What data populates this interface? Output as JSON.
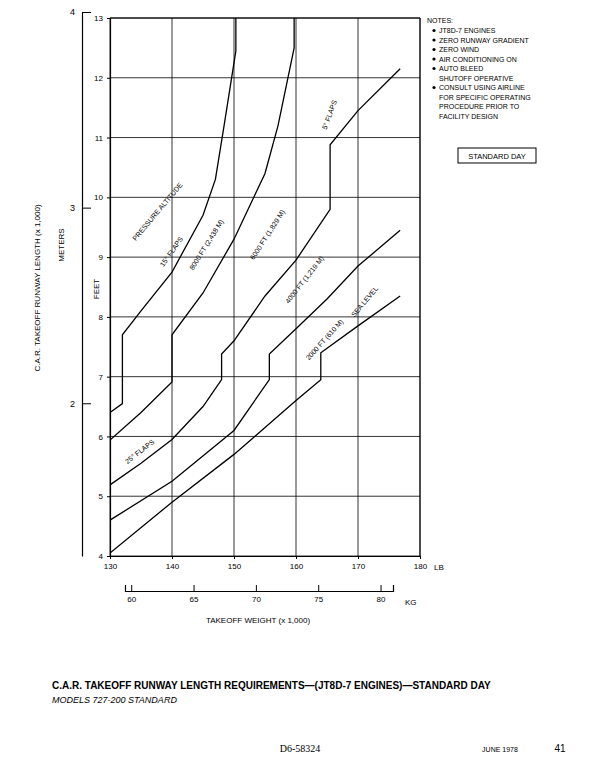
{
  "chart_data": {
    "type": "line",
    "title": "C.A.R. TAKEOFF RUNWAY LENGTH REQUIREMENTS—(JT8D-7 ENGINES)—STANDARD DAY",
    "subtitle": "MODELS 727-200 STANDARD",
    "x_label": "TAKEOFF WEIGHT (x 1,000)",
    "x_unit": "LB",
    "x2_unit": "KG",
    "y_label": "C.A.R. TAKEOFF RUNWAY LENGTH (x 1,000)",
    "y_unit": "FEET",
    "y2_unit": "METERS",
    "xlim": [
      130,
      180
    ],
    "xticks": [
      130,
      140,
      150,
      160,
      170,
      180
    ],
    "x2lim": [
      59.5,
      81
    ],
    "x2ticks": [
      60,
      65,
      70,
      75,
      80
    ],
    "ylim": [
      4,
      13
    ],
    "yticks": [
      4,
      5,
      6,
      7,
      8,
      9,
      10,
      11,
      12,
      13
    ],
    "y2lim": [
      1.2192,
      4.0
    ],
    "y2ticks": [
      2,
      3,
      4
    ],
    "grid": true,
    "series": [
      {
        "name": "8000 FT (2,438 M)",
        "color": "#000000",
        "x": [
          130,
          132,
          132,
          135,
          140,
          145,
          147,
          148.4,
          150.3,
          150.3
        ],
        "values": [
          6.4,
          6.55,
          7.7,
          8.1,
          8.75,
          9.7,
          10.3,
          11.2,
          12.45,
          13
        ]
      },
      {
        "name": "6000 FT (1,829 M)",
        "color": "#000000",
        "x": [
          130,
          135,
          140,
          140,
          145,
          150,
          155,
          157.1,
          159.7,
          159.7
        ],
        "values": [
          5.94,
          6.4,
          6.91,
          7.7,
          8.4,
          9.3,
          10.4,
          11.2,
          12.5,
          13
        ]
      },
      {
        "name": "4000 FT (1,219 M)",
        "color": "#000000",
        "x": [
          130,
          135,
          140,
          145,
          148,
          148,
          150,
          155,
          160,
          165.5,
          165.5,
          170,
          176.8
        ],
        "values": [
          5.19,
          5.55,
          5.95,
          6.5,
          6.95,
          7.38,
          7.6,
          8.35,
          8.95,
          9.8,
          10.88,
          11.45,
          12.15
        ]
      },
      {
        "name": "2000 FT (610 M)",
        "color": "#000000",
        "x": [
          130,
          140,
          150,
          155.7,
          155.7,
          160,
          165,
          170,
          176.8
        ],
        "values": [
          4.6,
          5.25,
          6.1,
          6.95,
          7.38,
          7.8,
          8.3,
          8.85,
          9.45
        ]
      },
      {
        "name": "SEA LEVEL",
        "color": "#000000",
        "x": [
          130,
          140,
          150,
          160,
          164,
          164,
          170,
          176.8
        ],
        "values": [
          4.05,
          4.9,
          5.7,
          6.6,
          6.95,
          7.4,
          7.85,
          8.35
        ]
      }
    ],
    "annotations": [
      "PRESSURE ALTITUDE",
      "15° FLAPS",
      "25° FLAPS",
      "5° FLAPS"
    ],
    "notes_title": "NOTES:",
    "notes": [
      [
        "JT8D-7 ENGINES"
      ],
      [
        "ZERO RUNWAY GRADIENT"
      ],
      [
        "ZERO WIND"
      ],
      [
        "AIR CONDITIONING ON"
      ],
      [
        "AUTO BLEED",
        "SHUTOFF OPERATIVE"
      ],
      [
        "CONSULT USING AIRLINE",
        "FOR SPECIFIC OPERATING",
        "PROCEDURE PRIOR TO",
        "FACILITY DESIGN"
      ]
    ],
    "condition": "STANDARD DAY",
    "document_number": "D6-58324",
    "date": "JUNE 1978",
    "page": "41"
  }
}
